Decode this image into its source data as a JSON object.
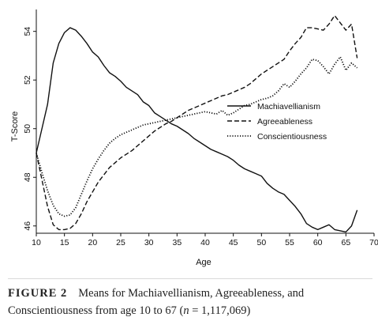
{
  "chart_data": {
    "type": "line",
    "xlabel": "Age",
    "ylabel": "T-Score",
    "xlim": [
      10,
      70
    ],
    "ylim": [
      45.7,
      54.9
    ],
    "xticks": [
      10,
      15,
      20,
      25,
      30,
      35,
      40,
      45,
      50,
      55,
      60,
      65,
      70
    ],
    "yticks": [
      46,
      48,
      50,
      52,
      54
    ],
    "grid": false,
    "legend_position": "right",
    "series": [
      {
        "name": "Machiavellianism",
        "style": "solid",
        "x": [
          10,
          11,
          12,
          13,
          14,
          15,
          16,
          17,
          18,
          19,
          20,
          21,
          22,
          23,
          24,
          25,
          26,
          27,
          28,
          29,
          30,
          31,
          32,
          33,
          34,
          35,
          36,
          37,
          38,
          39,
          40,
          41,
          42,
          43,
          44,
          45,
          46,
          47,
          48,
          49,
          50,
          51,
          52,
          53,
          54,
          55,
          56,
          57,
          58,
          59,
          60,
          61,
          62,
          63,
          64,
          65,
          66,
          67
        ],
        "values": [
          49.0,
          50.0,
          51.0,
          52.7,
          53.5,
          53.95,
          54.15,
          54.05,
          53.8,
          53.5,
          53.15,
          52.95,
          52.6,
          52.3,
          52.15,
          51.95,
          51.7,
          51.55,
          51.4,
          51.1,
          50.95,
          50.65,
          50.5,
          50.35,
          50.2,
          50.1,
          49.95,
          49.8,
          49.6,
          49.45,
          49.3,
          49.15,
          49.05,
          48.95,
          48.85,
          48.7,
          48.5,
          48.35,
          48.25,
          48.15,
          48.05,
          47.75,
          47.55,
          47.4,
          47.3,
          47.05,
          46.8,
          46.5,
          46.1,
          45.95,
          45.85,
          45.95,
          46.05,
          45.85,
          45.8,
          45.75,
          46.0,
          46.65
        ]
      },
      {
        "name": "Agreeableness",
        "style": "dashed",
        "x": [
          10,
          11,
          12,
          13,
          14,
          15,
          16,
          17,
          18,
          19,
          20,
          21,
          22,
          23,
          24,
          25,
          26,
          27,
          28,
          29,
          30,
          31,
          32,
          33,
          34,
          35,
          36,
          37,
          38,
          39,
          40,
          41,
          42,
          43,
          44,
          45,
          46,
          47,
          48,
          49,
          50,
          51,
          52,
          53,
          54,
          55,
          56,
          57,
          58,
          59,
          60,
          61,
          62,
          63,
          64,
          65,
          66,
          67
        ],
        "values": [
          49.0,
          47.9,
          46.8,
          46.05,
          45.85,
          45.85,
          45.9,
          46.1,
          46.5,
          47.0,
          47.4,
          47.8,
          48.1,
          48.4,
          48.6,
          48.8,
          48.95,
          49.1,
          49.3,
          49.5,
          49.7,
          49.9,
          50.05,
          50.2,
          50.3,
          50.45,
          50.6,
          50.75,
          50.85,
          50.95,
          51.05,
          51.15,
          51.25,
          51.35,
          51.4,
          51.5,
          51.6,
          51.7,
          51.85,
          52.05,
          52.25,
          52.4,
          52.55,
          52.7,
          52.85,
          53.2,
          53.5,
          53.75,
          54.15,
          54.15,
          54.1,
          54.05,
          54.3,
          54.65,
          54.35,
          54.05,
          54.3,
          52.9
        ]
      },
      {
        "name": "Conscientiousness",
        "style": "dotted",
        "x": [
          10,
          11,
          12,
          13,
          14,
          15,
          16,
          17,
          18,
          19,
          20,
          21,
          22,
          23,
          24,
          25,
          26,
          27,
          28,
          29,
          30,
          31,
          32,
          33,
          34,
          35,
          36,
          37,
          38,
          39,
          40,
          41,
          42,
          43,
          44,
          45,
          46,
          47,
          48,
          49,
          50,
          51,
          52,
          53,
          54,
          55,
          56,
          57,
          58,
          59,
          60,
          61,
          62,
          63,
          64,
          65,
          66,
          67
        ],
        "values": [
          49.0,
          48.2,
          47.45,
          46.85,
          46.5,
          46.4,
          46.45,
          46.75,
          47.3,
          47.85,
          48.35,
          48.75,
          49.1,
          49.4,
          49.6,
          49.75,
          49.85,
          49.95,
          50.05,
          50.15,
          50.2,
          50.25,
          50.3,
          50.35,
          50.4,
          50.45,
          50.5,
          50.55,
          50.6,
          50.65,
          50.7,
          50.65,
          50.6,
          50.75,
          50.55,
          50.65,
          50.8,
          50.95,
          51.0,
          51.1,
          51.2,
          51.25,
          51.35,
          51.55,
          51.85,
          51.7,
          51.95,
          52.25,
          52.5,
          52.85,
          52.8,
          52.55,
          52.25,
          52.65,
          52.95,
          52.4,
          52.7,
          52.5
        ]
      }
    ]
  },
  "caption": {
    "label": "FIGURE 2",
    "text_before_n": "Means for Machiavellianism, Agreeableness, and Conscientiousness from age 10 to 67 (",
    "n_symbol": "n",
    "text_after_n": " = 1,117,069)"
  }
}
